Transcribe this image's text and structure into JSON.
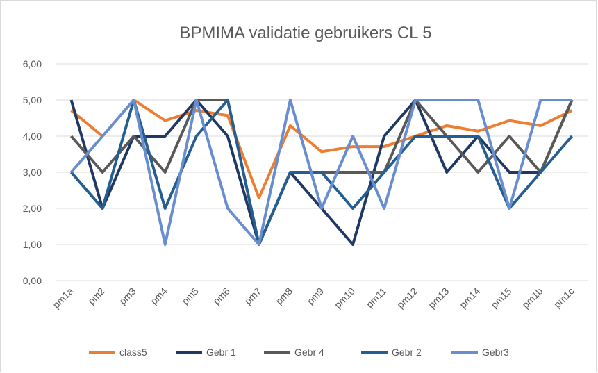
{
  "chart_data": {
    "type": "line",
    "title": "BPMIMA validatie gebruikers CL 5",
    "categories": [
      "pm1a",
      "pm2",
      "pm3",
      "pm4",
      "pm5",
      "pm6",
      "pm7",
      "pm8",
      "pm9",
      "pm10",
      "pm11",
      "pm12",
      "pm13",
      "pm14",
      "pm15",
      "pm1b",
      "pm1c"
    ],
    "series": [
      {
        "name": "class5",
        "color": "#ed7d31",
        "values": [
          4.71,
          4.0,
          5.0,
          4.43,
          4.71,
          4.57,
          2.29,
          4.29,
          3.57,
          3.71,
          3.71,
          4.0,
          4.29,
          4.14,
          4.43,
          4.29,
          4.71
        ]
      },
      {
        "name": "Gebr 1",
        "color": "#203864",
        "values": [
          5,
          2,
          4,
          4,
          5,
          4,
          1,
          3,
          2,
          1,
          4,
          5,
          3,
          4,
          3,
          3,
          5
        ]
      },
      {
        "name": "Gebr 4",
        "color": "#595959",
        "values": [
          4,
          3,
          4,
          3,
          5,
          5,
          1,
          3,
          3,
          3,
          3,
          5,
          4,
          3,
          4,
          3,
          5
        ]
      },
      {
        "name": "Gebr 2",
        "color": "#255e91",
        "values": [
          3,
          2,
          5,
          2,
          4,
          5,
          1,
          3,
          3,
          2,
          3,
          4,
          4,
          4,
          2,
          3,
          4
        ]
      },
      {
        "name": "Gebr3",
        "color": "#698ed0",
        "values": [
          3,
          4,
          5,
          1,
          5,
          2,
          1,
          5,
          2,
          4,
          2,
          5,
          5,
          5,
          2,
          5,
          5
        ]
      }
    ],
    "ylim": [
      0,
      6
    ],
    "yticks": [
      {
        "value": 0,
        "label": "0,00"
      },
      {
        "value": 1,
        "label": "1,00"
      },
      {
        "value": 2,
        "label": "2,00"
      },
      {
        "value": 3,
        "label": "3,00"
      },
      {
        "value": 4,
        "label": "4,00"
      },
      {
        "value": 5,
        "label": "5,00"
      },
      {
        "value": 6,
        "label": "6,00"
      }
    ],
    "grid": true,
    "legend": "bottom"
  }
}
